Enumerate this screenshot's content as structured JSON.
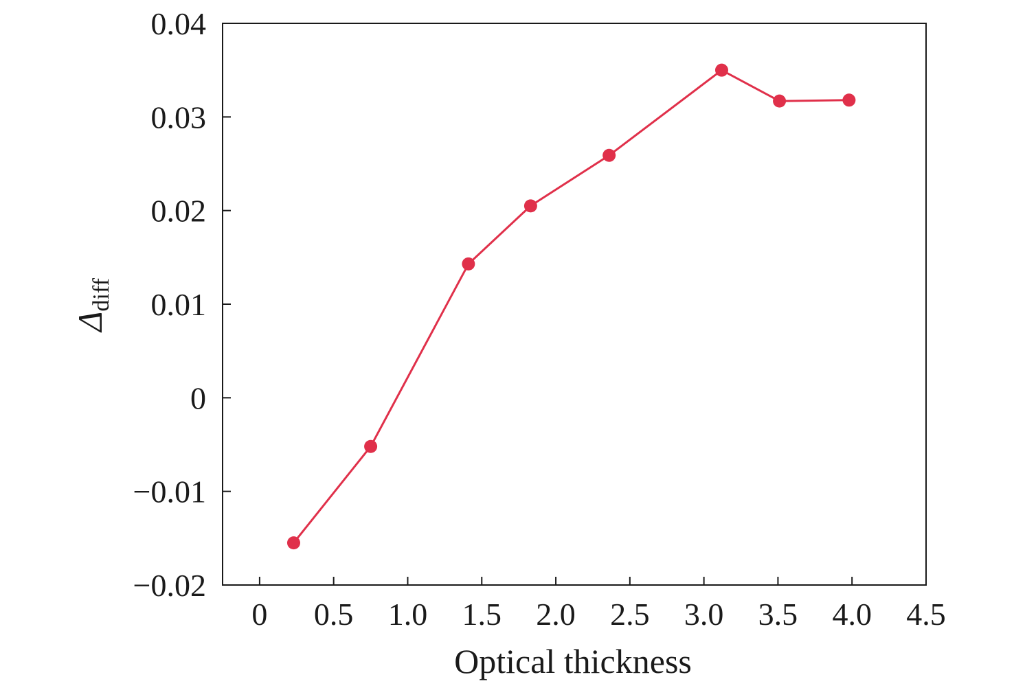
{
  "chart_data": {
    "type": "line",
    "title": "",
    "xlabel": "Optical thickness",
    "ylabel": {
      "symbol": "Δ",
      "subscript": "diff"
    },
    "xlim": [
      -0.25,
      4.5
    ],
    "ylim": [
      -0.02,
      0.04
    ],
    "x_ticks": [
      0,
      0.5,
      1.0,
      1.5,
      2.0,
      2.5,
      3.0,
      3.5,
      4.0,
      4.5
    ],
    "x_tick_labels": [
      "0",
      "0.5",
      "1.0",
      "1.5",
      "2.0",
      "2.5",
      "3.0",
      "3.5",
      "4.0",
      "4.5"
    ],
    "y_ticks": [
      -0.02,
      -0.01,
      0,
      0.01,
      0.02,
      0.03,
      0.04
    ],
    "y_tick_labels": [
      "−0.02",
      "−0.01",
      "0",
      "0.01",
      "0.02",
      "0.03",
      "0.04"
    ],
    "grid": false,
    "series": [
      {
        "color": "#e0304a",
        "marker": "circle",
        "x": [
          0.23,
          0.75,
          1.41,
          1.83,
          2.36,
          3.12,
          3.51,
          3.98
        ],
        "y": [
          -0.0155,
          -0.0052,
          0.0143,
          0.0205,
          0.0259,
          0.035,
          0.0317,
          0.0318
        ]
      }
    ]
  }
}
